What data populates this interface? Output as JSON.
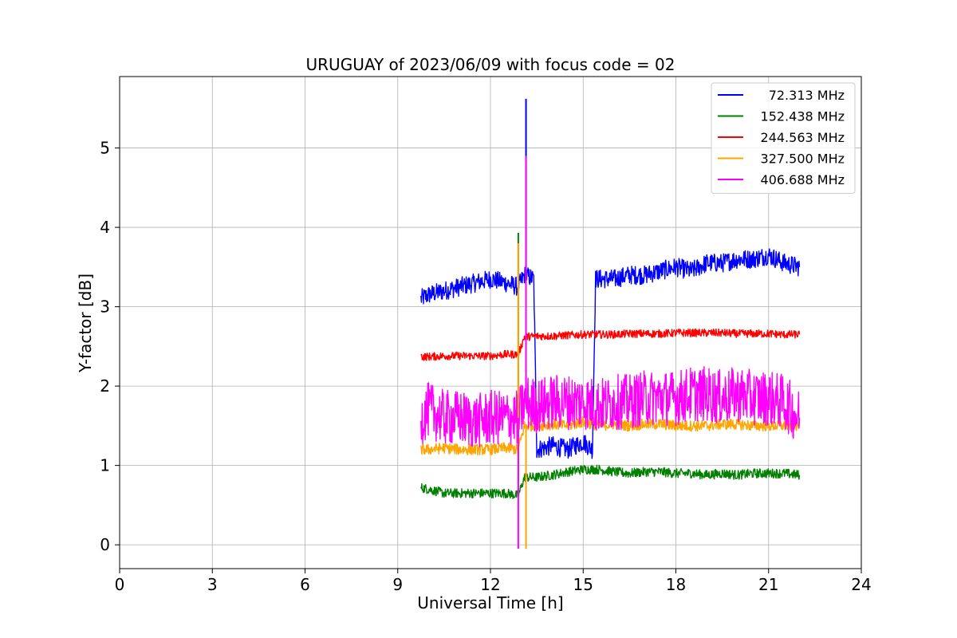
{
  "chart_data": {
    "type": "line",
    "title": "URUGUAY of 2023/06/09 with focus code = 02",
    "xlabel": "Universal Time [h]",
    "ylabel": "Y-factor [dB]",
    "xlim": [
      0,
      24
    ],
    "ylim": [
      -0.3,
      5.9
    ],
    "xticks": [
      0,
      3,
      6,
      9,
      12,
      15,
      18,
      21,
      24
    ],
    "yticks": [
      0,
      1,
      2,
      3,
      4,
      5
    ],
    "grid": true,
    "legend_position": "top-right",
    "series": [
      {
        "name": "72.313 MHz",
        "color": "#0000ff",
        "x": [
          9.75,
          10.0,
          10.5,
          11.0,
          11.5,
          12.0,
          12.5,
          12.9,
          13.1,
          13.4,
          13.5,
          14.0,
          14.5,
          15.0,
          15.3,
          15.4,
          16.0,
          16.5,
          17.0,
          17.5,
          18.0,
          18.5,
          19.0,
          19.5,
          20.0,
          20.5,
          21.0,
          21.5,
          22.0
        ],
        "y": [
          3.1,
          3.15,
          3.2,
          3.25,
          3.3,
          3.35,
          3.3,
          3.25,
          3.4,
          3.35,
          1.2,
          1.25,
          1.2,
          1.3,
          1.2,
          3.35,
          3.35,
          3.4,
          3.4,
          3.45,
          3.5,
          3.45,
          3.55,
          3.55,
          3.6,
          3.6,
          3.65,
          3.55,
          3.5
        ],
        "noise": 0.12
      },
      {
        "name": "152.438 MHz",
        "color": "#008000",
        "x": [
          9.75,
          10.0,
          10.5,
          11.0,
          11.5,
          12.0,
          12.5,
          12.9,
          13.1,
          13.5,
          14.0,
          14.5,
          15.0,
          15.5,
          16.0,
          16.5,
          17.0,
          17.5,
          18.0,
          18.5,
          19.0,
          19.5,
          20.0,
          20.5,
          21.0,
          21.5,
          22.0
        ],
        "y": [
          0.72,
          0.7,
          0.65,
          0.65,
          0.65,
          0.65,
          0.65,
          0.62,
          0.85,
          0.85,
          0.88,
          0.92,
          0.95,
          0.95,
          0.92,
          0.9,
          0.92,
          0.92,
          0.9,
          0.9,
          0.88,
          0.9,
          0.88,
          0.9,
          0.9,
          0.9,
          0.88
        ],
        "noise": 0.06
      },
      {
        "name": "244.563 MHz",
        "color": "#ff0000",
        "x": [
          9.75,
          10.0,
          10.5,
          11.0,
          11.5,
          12.0,
          12.5,
          12.9,
          13.1,
          13.5,
          14.0,
          14.5,
          15.0,
          15.5,
          16.0,
          16.5,
          17.0,
          17.5,
          18.0,
          18.5,
          19.0,
          19.5,
          20.0,
          20.5,
          21.0,
          21.5,
          22.0
        ],
        "y": [
          2.37,
          2.37,
          2.38,
          2.38,
          2.38,
          2.38,
          2.4,
          2.4,
          2.62,
          2.63,
          2.63,
          2.64,
          2.65,
          2.65,
          2.65,
          2.66,
          2.66,
          2.66,
          2.67,
          2.67,
          2.67,
          2.67,
          2.66,
          2.66,
          2.66,
          2.65,
          2.65
        ],
        "noise": 0.05
      },
      {
        "name": "327.500 MHz",
        "color": "#ffa500",
        "x": [
          9.75,
          10.0,
          10.5,
          11.0,
          11.5,
          12.0,
          12.5,
          12.9,
          13.1,
          13.5,
          14.0,
          14.5,
          15.0,
          15.5,
          16.0,
          16.5,
          17.0,
          17.5,
          18.0,
          18.5,
          19.0,
          19.5,
          20.0,
          20.5,
          21.0,
          21.5,
          22.0
        ],
        "y": [
          1.2,
          1.2,
          1.22,
          1.2,
          1.2,
          1.2,
          1.22,
          1.2,
          1.5,
          1.5,
          1.52,
          1.5,
          1.55,
          1.5,
          1.52,
          1.5,
          1.52,
          1.52,
          1.5,
          1.5,
          1.5,
          1.52,
          1.52,
          1.5,
          1.5,
          1.5,
          1.5
        ],
        "noise": 0.07
      },
      {
        "name": "406.688 MHz",
        "color": "#ff00ff",
        "x": [
          9.75,
          10.0,
          10.5,
          11.0,
          11.5,
          12.0,
          12.5,
          12.9,
          13.1,
          13.5,
          14.0,
          14.5,
          15.0,
          15.5,
          16.0,
          16.5,
          17.0,
          17.5,
          18.0,
          18.5,
          19.0,
          19.5,
          20.0,
          20.5,
          21.0,
          21.5,
          22.0
        ],
        "y": [
          1.6,
          1.7,
          1.6,
          1.6,
          1.55,
          1.6,
          1.6,
          1.6,
          1.8,
          1.75,
          1.8,
          1.8,
          1.8,
          1.75,
          1.8,
          1.8,
          1.85,
          1.85,
          1.85,
          1.9,
          1.9,
          1.85,
          1.9,
          1.85,
          1.85,
          1.8,
          1.6
        ],
        "noise": 0.35
      }
    ],
    "spikes": [
      {
        "series": 0,
        "x": 13.15,
        "y": 5.62
      },
      {
        "series": 1,
        "x": 12.9,
        "y": 3.93
      },
      {
        "series": 3,
        "x": 12.9,
        "y": 3.8
      },
      {
        "series": 4,
        "x": 13.15,
        "y": 4.9
      },
      {
        "series": 4,
        "x": 12.9,
        "y": -0.05
      },
      {
        "series": 3,
        "x": 13.15,
        "y": -0.05
      }
    ]
  }
}
